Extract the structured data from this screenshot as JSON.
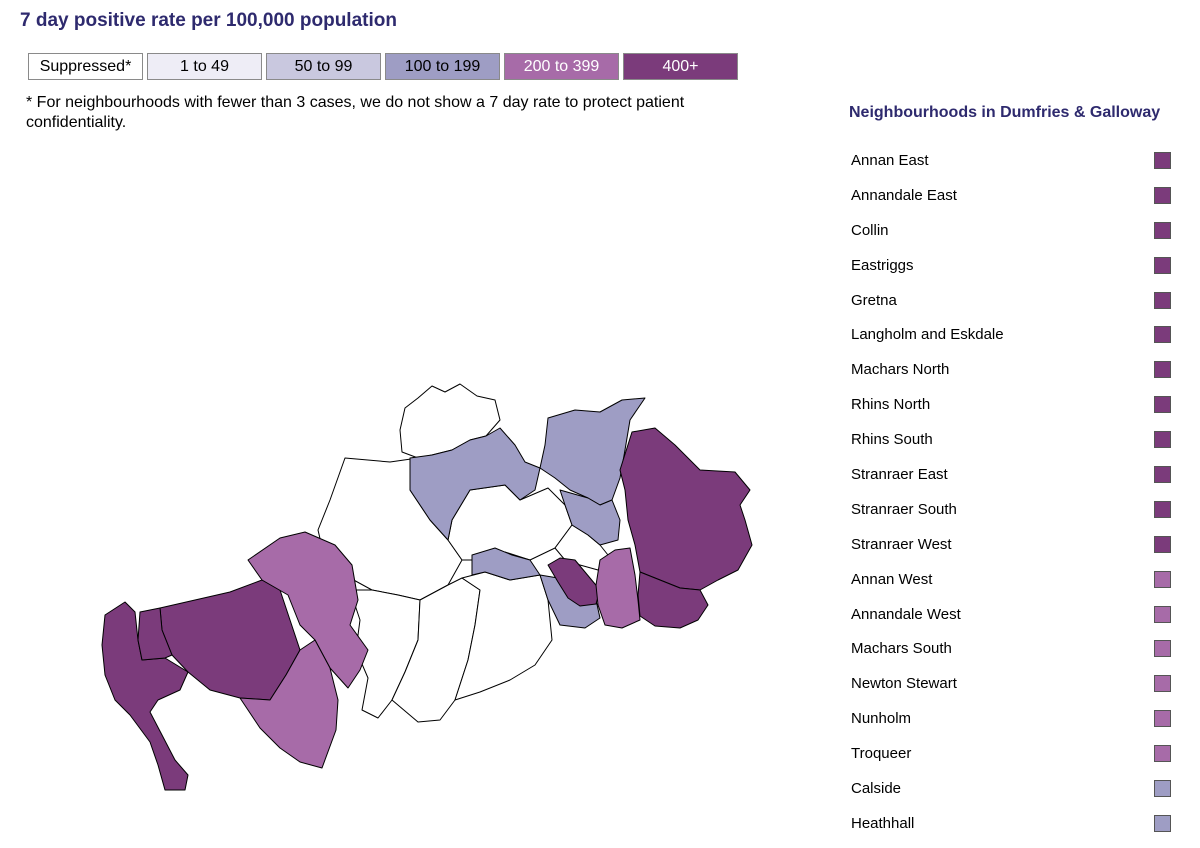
{
  "title": "7 day positive rate per 100,000 population",
  "legend": [
    {
      "label": "Suppressed*",
      "color": "#ffffff",
      "text_color": "#000000"
    },
    {
      "label": "1 to 49",
      "color": "#eeedf6",
      "text_color": "#000000"
    },
    {
      "label": "50 to 99",
      "color": "#c9c8df",
      "text_color": "#000000"
    },
    {
      "label": "100 to 199",
      "color": "#9e9dc4",
      "text_color": "#000000"
    },
    {
      "label": "200 to 399",
      "color": "#a76ba8",
      "text_color": "#ffffff"
    },
    {
      "label": "400+",
      "color": "#7b3b7b",
      "text_color": "#ffffff"
    }
  ],
  "note": "* For neighbourhoods with fewer than 3 cases, we do not show a 7 day rate to protect patient confidentiality.",
  "neighbourhoods_title": "Neighbourhoods in Dumfries & Galloway",
  "neighbourhoods": [
    {
      "name": "Annan East",
      "band": "400+"
    },
    {
      "name": "Annandale East",
      "band": "400+"
    },
    {
      "name": "Collin",
      "band": "400+"
    },
    {
      "name": "Eastriggs",
      "band": "400+"
    },
    {
      "name": "Gretna",
      "band": "400+"
    },
    {
      "name": "Langholm and Eskdale",
      "band": "400+"
    },
    {
      "name": "Machars North",
      "band": "400+"
    },
    {
      "name": "Rhins North",
      "band": "400+"
    },
    {
      "name": "Rhins South",
      "band": "400+"
    },
    {
      "name": "Stranraer East",
      "band": "400+"
    },
    {
      "name": "Stranraer South",
      "band": "400+"
    },
    {
      "name": "Stranraer West",
      "band": "400+"
    },
    {
      "name": "Annan West",
      "band": "200 to 399"
    },
    {
      "name": "Annandale West",
      "band": "200 to 399"
    },
    {
      "name": "Machars South",
      "band": "200 to 399"
    },
    {
      "name": "Newton Stewart",
      "band": "200 to 399"
    },
    {
      "name": "Nunholm",
      "band": "200 to 399"
    },
    {
      "name": "Troqueer",
      "band": "200 to 399"
    },
    {
      "name": "Calside",
      "band": "100 to 199"
    },
    {
      "name": "Heathhall",
      "band": "100 to 199"
    }
  ]
}
